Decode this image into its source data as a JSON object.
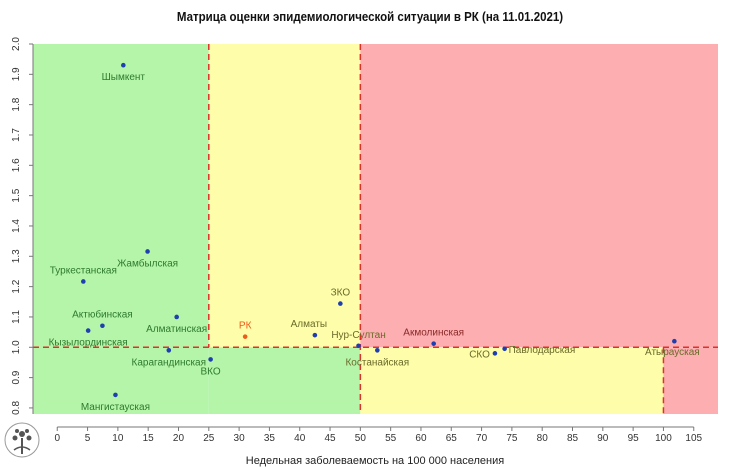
{
  "chart_data": {
    "type": "scatter",
    "title": "Матрица оценки эпидемиологической ситуации в РК (на 11.01.2021)",
    "xlabel": "Недельная заболеваемость на 100 000 населения",
    "ylabel": "",
    "xlim": [
      -4,
      109
    ],
    "ylim": [
      0.78,
      2.0
    ],
    "x_ticks": [
      0,
      5,
      10,
      15,
      20,
      25,
      30,
      35,
      40,
      45,
      50,
      55,
      60,
      65,
      70,
      75,
      80,
      85,
      90,
      95,
      100,
      105
    ],
    "y_ticks": [
      0.8,
      0.9,
      1.0,
      1.1,
      1.2,
      1.3,
      1.4,
      1.5,
      1.6,
      1.7,
      1.8,
      1.9,
      2.0
    ],
    "grid": false,
    "zones": [
      {
        "x": [
          -4,
          25
        ],
        "y": [
          0.78,
          2.0
        ],
        "color": "#b4f5a9"
      },
      {
        "x": [
          25,
          50
        ],
        "y": [
          1.0,
          2.0
        ],
        "color": "#fdfdaa"
      },
      {
        "x": [
          25,
          50
        ],
        "y": [
          0.78,
          1.0
        ],
        "color": "#b4f5a9"
      },
      {
        "x": [
          50,
          109
        ],
        "y": [
          1.0,
          2.0
        ],
        "color": "#fdaeb0"
      },
      {
        "x": [
          50,
          100
        ],
        "y": [
          0.78,
          1.0
        ],
        "color": "#fdfdaa"
      },
      {
        "x": [
          100,
          109
        ],
        "y": [
          0.78,
          1.0
        ],
        "color": "#fdaeb0"
      }
    ],
    "threshold_lines": {
      "x": [
        25,
        50,
        100
      ],
      "y": [
        1.0
      ],
      "color": "#e0302a"
    },
    "points": [
      {
        "label": "Шымкент",
        "x": 10.9,
        "y": 1.93,
        "pos": "below",
        "color": "#1f3fb0",
        "label_color": "#2f7a2f"
      },
      {
        "label": "Жамбылская",
        "x": 14.9,
        "y": 1.316,
        "pos": "below",
        "color": "#1f3fb0",
        "label_color": "#2f7a2f"
      },
      {
        "label": "Туркестанская",
        "x": 4.3,
        "y": 1.217,
        "pos": "above",
        "color": "#1f3fb0",
        "label_color": "#2f7a2f"
      },
      {
        "label": "Актюбинская",
        "x": 7.45,
        "y": 1.071,
        "pos": "above",
        "color": "#1f3fb0",
        "label_color": "#2f7a2f"
      },
      {
        "label": "Кызылординская",
        "x": 5.1,
        "y": 1.055,
        "pos": "below",
        "color": "#1f3fb0",
        "label_color": "#2f7a2f"
      },
      {
        "label": "Алматинская",
        "x": 19.7,
        "y": 1.1,
        "pos": "below",
        "color": "#1f3fb0",
        "label_color": "#2f7a2f"
      },
      {
        "label": "Карагандинская",
        "x": 18.4,
        "y": 0.99,
        "pos": "below",
        "color": "#1f3fb0",
        "label_color": "#2f7a2f"
      },
      {
        "label": "ВКО",
        "x": 25.3,
        "y": 0.96,
        "pos": "below",
        "color": "#1f3fb0",
        "label_color": "#2f7a2f"
      },
      {
        "label": "Мангистауская",
        "x": 9.6,
        "y": 0.843,
        "pos": "below",
        "color": "#1f3fb0",
        "label_color": "#2f7a2f"
      },
      {
        "label": "РК",
        "x": 31.0,
        "y": 1.035,
        "pos": "above",
        "color": "#f05a1a",
        "label_color": "#f05a1a"
      },
      {
        "label": "Алматы",
        "x": 42.5,
        "y": 1.04,
        "pos": "above-left",
        "color": "#1f3fb0",
        "label_color": "#6b6b2a"
      },
      {
        "label": "ЗКО",
        "x": 46.7,
        "y": 1.144,
        "pos": "above",
        "color": "#1f3fb0",
        "label_color": "#6b6b2a"
      },
      {
        "label": "Нур-Султан",
        "x": 49.7,
        "y": 1.005,
        "pos": "above",
        "color": "#1f3fb0",
        "label_color": "#6b6b2a"
      },
      {
        "label": "Костанайская",
        "x": 52.8,
        "y": 0.99,
        "pos": "below",
        "color": "#1f3fb0",
        "label_color": "#6b6b2a"
      },
      {
        "label": "Акмолинская",
        "x": 62.1,
        "y": 1.012,
        "pos": "above",
        "color": "#1f3fb0",
        "label_color": "#8a2a2a"
      },
      {
        "label": "СКО",
        "x": 72.2,
        "y": 0.98,
        "pos": "left",
        "color": "#1f3fb0",
        "label_color": "#6b6b2a"
      },
      {
        "label": "Павлодарская",
        "x": 73.8,
        "y": 0.995,
        "pos": "right",
        "color": "#1f3fb0",
        "label_color": "#6b6b2a"
      },
      {
        "label": "Атырауская",
        "x": 101.8,
        "y": 1.02,
        "pos": "below-left",
        "color": "#1f3fb0",
        "label_color": "#6b6b2a"
      }
    ]
  }
}
